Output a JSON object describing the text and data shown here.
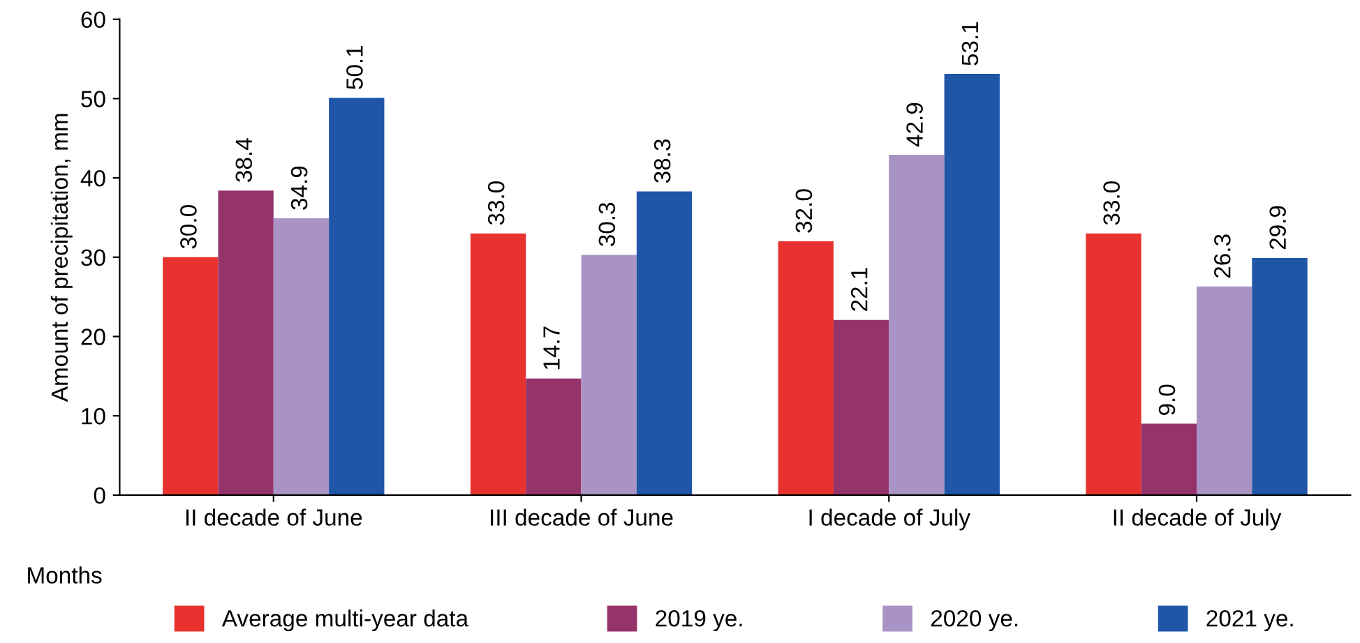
{
  "chart_data": {
    "type": "bar",
    "xlabel": "Months",
    "ylabel": "Amount of precipitation, mm",
    "categories": [
      "II decade of June",
      "III decade of June",
      "I decade of July",
      "II decade of July"
    ],
    "series": [
      {
        "name": "Average multi-year data",
        "color": "#e8322f",
        "values": [
          30.0,
          33.0,
          32.0,
          33.0
        ],
        "value_labels": [
          "30.0",
          "33.0",
          "32.0",
          "33.0"
        ]
      },
      {
        "name": "2019 ye.",
        "color": "#95336a",
        "values": [
          38.4,
          14.7,
          22.1,
          9.0
        ],
        "value_labels": [
          "38.4",
          "14.7",
          "22.1",
          "9.0"
        ]
      },
      {
        "name": "2020 ye.",
        "color": "#a993c5",
        "values": [
          34.9,
          30.3,
          42.9,
          26.3
        ],
        "value_labels": [
          "34.9",
          "30.3",
          "42.9",
          "26.3"
        ]
      },
      {
        "name": "2021 ye.",
        "color": "#1f56a7",
        "values": [
          50.1,
          38.3,
          53.1,
          29.9
        ],
        "value_labels": [
          "50.1",
          "38.3",
          "53.1",
          "29.9"
        ]
      }
    ],
    "ylim": [
      0,
      60
    ],
    "yticks": [
      0,
      10,
      20,
      30,
      40,
      50,
      60
    ],
    "grid": false,
    "legend": "bottom"
  }
}
